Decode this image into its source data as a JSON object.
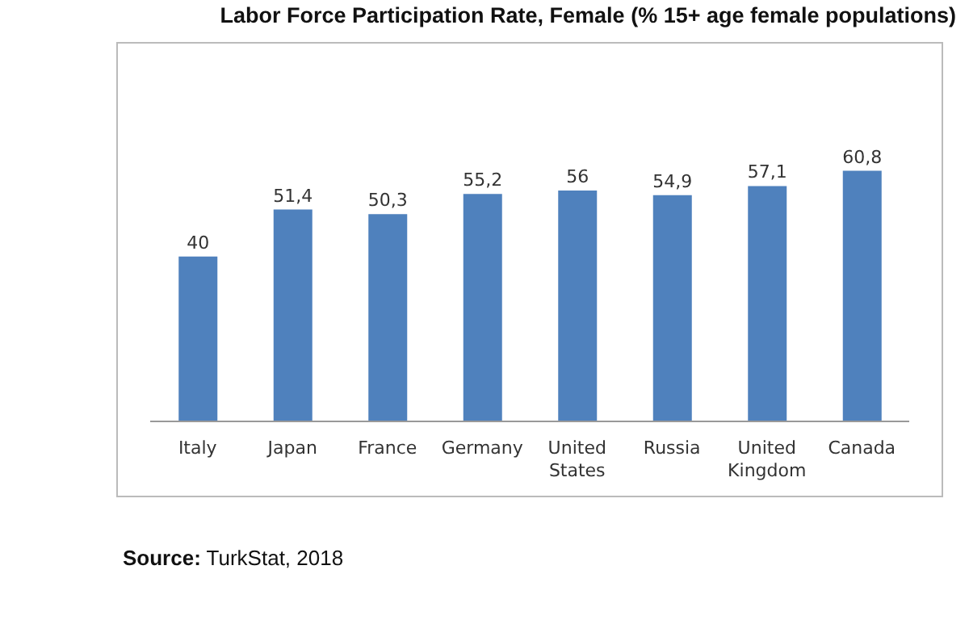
{
  "chart_data": {
    "type": "bar",
    "title": "Labor Force Participation Rate, Female (% 15+ age female populations)",
    "categories": [
      "Italy",
      "Japan",
      "France",
      "Germany",
      "United States",
      "Russia",
      "United Kingdom",
      "Canada"
    ],
    "values": [
      40,
      51.4,
      50.3,
      55.2,
      56,
      54.9,
      57.1,
      60.8
    ],
    "value_labels": [
      "40",
      "51,4",
      "50,3",
      "55,2",
      "56",
      "54,9",
      "57,1",
      "60,8"
    ],
    "color": "#4f81bd",
    "annotations": [
      "Source: TurkStat, 2018"
    ]
  }
}
